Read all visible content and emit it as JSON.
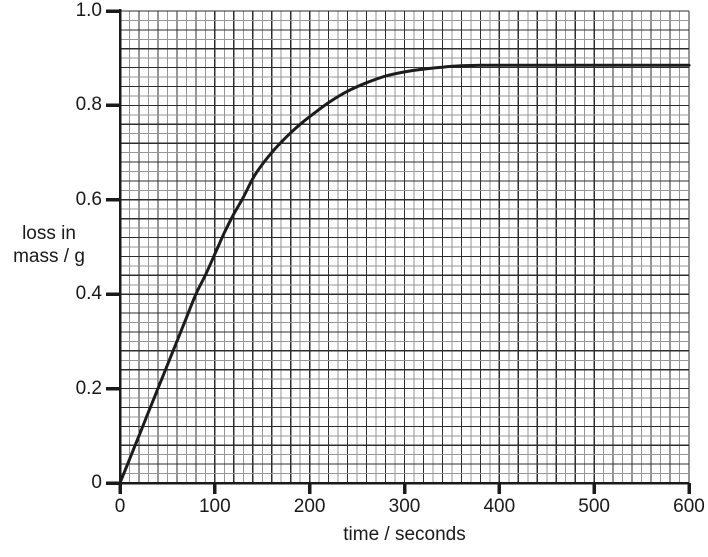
{
  "colors": {
    "background": "#ffffff",
    "grid_major": "#2d2d2d",
    "grid_minor": "#969696",
    "axis": "#1a1a1a",
    "text": "#1a1a1a",
    "curve": "#1c1c1c"
  },
  "chart_data": {
    "type": "line",
    "title": "",
    "xlabel": "time / seconds",
    "ylabel": "loss in mass / g",
    "ylabel_lines": [
      "loss in",
      "mass / g"
    ],
    "xlim": [
      0,
      600
    ],
    "ylim": [
      0,
      1.0
    ],
    "grid": {
      "on": true,
      "x_minor_step": 10,
      "y_minor_step": 0.02,
      "x_major_every": 2,
      "y_major_every": 2
    },
    "x_ticks": [
      {
        "v": 0,
        "label": "0"
      },
      {
        "v": 100,
        "label": "100"
      },
      {
        "v": 200,
        "label": "200"
      },
      {
        "v": 300,
        "label": "300"
      },
      {
        "v": 400,
        "label": "400"
      },
      {
        "v": 500,
        "label": "500"
      },
      {
        "v": 600,
        "label": "600"
      }
    ],
    "y_ticks": [
      {
        "v": 0,
        "label": "0"
      },
      {
        "v": 0.2,
        "label": "0.2"
      },
      {
        "v": 0.4,
        "label": "0.4"
      },
      {
        "v": 0.6,
        "label": "0.6"
      },
      {
        "v": 0.8,
        "label": "0.8"
      },
      {
        "v": 1.0,
        "label": "1.0"
      }
    ],
    "legend": null,
    "series": [
      {
        "name": "loss in mass",
        "color": "#1c1c1c",
        "points": [
          [
            0,
            0.0
          ],
          [
            10,
            0.05
          ],
          [
            20,
            0.1
          ],
          [
            30,
            0.15
          ],
          [
            40,
            0.2
          ],
          [
            50,
            0.25
          ],
          [
            60,
            0.3
          ],
          [
            70,
            0.35
          ],
          [
            80,
            0.4
          ],
          [
            90,
            0.44
          ],
          [
            100,
            0.485
          ],
          [
            110,
            0.53
          ],
          [
            120,
            0.57
          ],
          [
            130,
            0.605
          ],
          [
            140,
            0.645
          ],
          [
            150,
            0.675
          ],
          [
            160,
            0.7
          ],
          [
            170,
            0.722
          ],
          [
            180,
            0.742
          ],
          [
            190,
            0.76
          ],
          [
            200,
            0.776
          ],
          [
            220,
            0.806
          ],
          [
            240,
            0.83
          ],
          [
            260,
            0.848
          ],
          [
            280,
            0.862
          ],
          [
            300,
            0.871
          ],
          [
            320,
            0.877
          ],
          [
            340,
            0.881
          ],
          [
            360,
            0.884
          ],
          [
            380,
            0.885
          ],
          [
            400,
            0.885
          ],
          [
            450,
            0.885
          ],
          [
            500,
            0.885
          ],
          [
            550,
            0.885
          ],
          [
            600,
            0.885
          ]
        ]
      }
    ]
  }
}
